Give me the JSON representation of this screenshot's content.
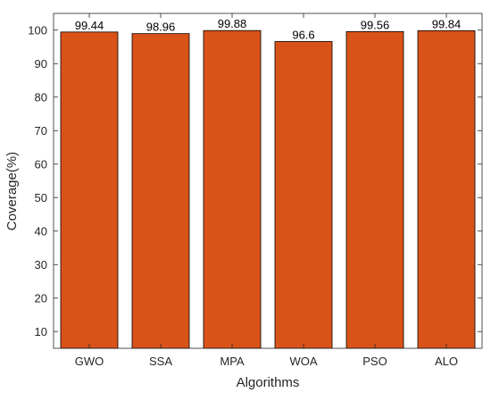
{
  "chart_data": {
    "type": "bar",
    "categories": [
      "GWO",
      "SSA",
      "MPA",
      "WOA",
      "PSO",
      "ALO"
    ],
    "values": [
      99.44,
      98.96,
      99.88,
      96.6,
      99.56,
      99.84
    ],
    "data_labels": [
      "99.44",
      "98.96",
      "99.88",
      "96.6",
      "99.56",
      "99.84"
    ],
    "xlabel": "Algorithms",
    "ylabel": "Coverage(%)",
    "ylim": [
      5,
      105
    ],
    "yticks": [
      10,
      20,
      30,
      40,
      50,
      60,
      70,
      80,
      90,
      100
    ],
    "grid": false,
    "bar_color": "#D95319",
    "edge_color": "#000000"
  }
}
